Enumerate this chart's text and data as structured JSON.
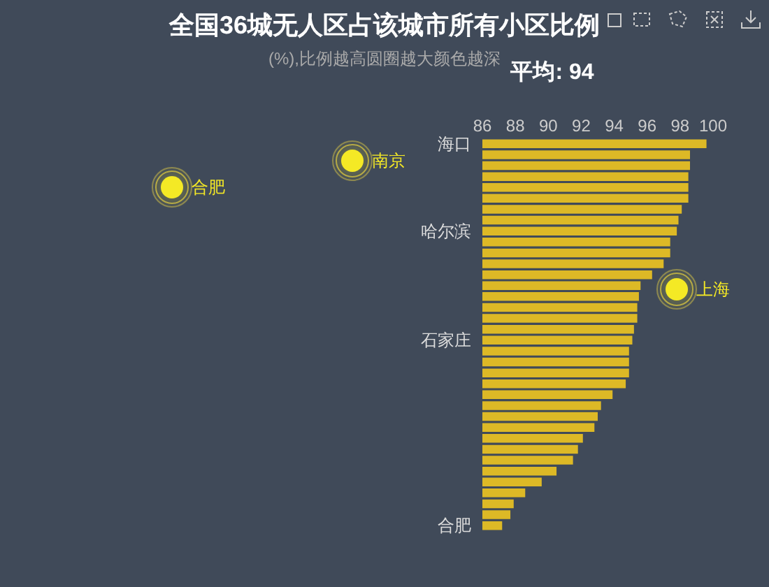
{
  "chart_data": {
    "type": "bar",
    "orientation": "horizontal",
    "title": "全国36城无人区占该城市所有小区比例",
    "subtitle": "(%),比例越高圆圈越大颜色越深",
    "annotations": [
      "平均: 94",
      "合肥",
      "南京",
      "上海"
    ],
    "categories": [
      "海口",
      null,
      null,
      null,
      null,
      null,
      null,
      null,
      "哈尔滨",
      null,
      null,
      null,
      null,
      null,
      null,
      null,
      null,
      null,
      "石家庄",
      null,
      null,
      null,
      null,
      null,
      null,
      null,
      null,
      null,
      null,
      null,
      null,
      null,
      null,
      null,
      null,
      "合肥"
    ],
    "values": [
      99.6,
      98.6,
      98.6,
      98.5,
      98.5,
      98.5,
      98.1,
      97.9,
      97.8,
      97.4,
      97.4,
      97.0,
      96.3,
      95.6,
      95.5,
      95.4,
      95.4,
      95.2,
      95.1,
      94.9,
      94.9,
      94.9,
      94.7,
      93.9,
      93.2,
      93.0,
      92.8,
      92.1,
      91.8,
      91.5,
      90.5,
      89.6,
      88.6,
      87.9,
      87.7,
      87.2
    ],
    "color": "#ddb926",
    "xlim": [
      86,
      100
    ],
    "xticks": [
      86,
      88,
      90,
      92,
      94,
      96,
      98,
      100
    ]
  }
}
